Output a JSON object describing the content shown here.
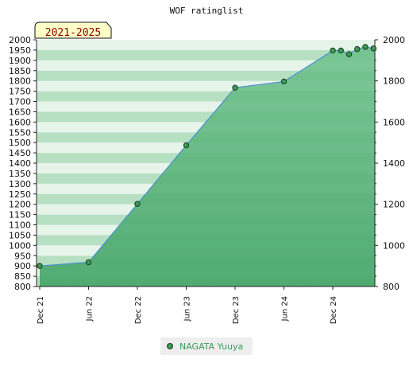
{
  "chart_data": {
    "type": "line",
    "title": "WOF ratinglist",
    "period_label": "2021-2025",
    "x_tick_labels": [
      "Dec 21",
      "Jun 22",
      "Dec 22",
      "Jun 23",
      "Dec 23",
      "Jun 24",
      "Dec 24"
    ],
    "y_left": {
      "min": 800,
      "max": 2000,
      "step": 50
    },
    "y_right": {
      "min": 800,
      "max": 2000,
      "step": 200
    },
    "series": [
      {
        "name": "NAGATA Yuuya",
        "x": [
          "Dec 21",
          "Jun 22",
          "Dec 22",
          "Jun 23",
          "Dec 23",
          "Jun 24",
          "Dec 24",
          "Jan 25",
          "Feb 25",
          "Mar 25",
          "Apr 25",
          "May 25"
        ],
        "values": [
          900,
          918,
          1202,
          1487,
          1767,
          1797,
          1948,
          1948,
          1930,
          1955,
          1965,
          1958
        ]
      }
    ],
    "colors": {
      "line": "#4a90d0",
      "area": "#5cb87a",
      "marker_fill": "#3a9a5a",
      "marker_stroke": "#1a3a1a",
      "stripe_light": "#e6f4ea",
      "stripe_dark": "#b7e0c2",
      "period_bg": "#ffffc8"
    },
    "grid": false,
    "legend": "bottom-center"
  }
}
